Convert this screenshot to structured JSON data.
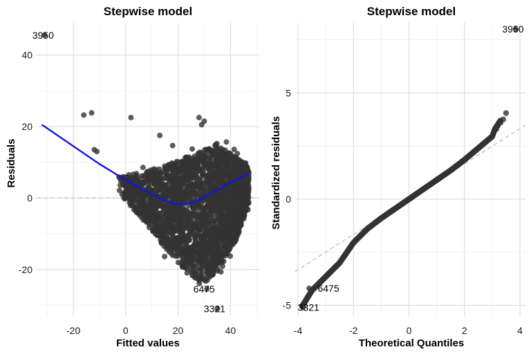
{
  "chart_data": [
    {
      "type": "scatter",
      "title": "Stepwise model",
      "xlabel": "Fitted values",
      "ylabel": "Residuals",
      "xlim": [
        -34,
        51
      ],
      "ylim": [
        -33,
        49
      ],
      "xticks": [
        -20,
        0,
        20,
        40
      ],
      "yticks": [
        -20,
        0,
        20,
        40
      ],
      "xticklabels": [
        "-20",
        "0",
        "20",
        "40"
      ],
      "yticklabels": [
        "-20",
        "0",
        "20",
        "40"
      ],
      "grid": true,
      "reference_line": {
        "y": 0,
        "style": "dashed",
        "color": "#bbbbbb"
      },
      "point_color": "#333333",
      "smooth_color": "#1414e6",
      "smooth_curve": {
        "x": [
          -32,
          -20,
          -10,
          0,
          5,
          10,
          15,
          20,
          25,
          30,
          35,
          40,
          47
        ],
        "y": [
          20.5,
          14.5,
          9.5,
          5,
          3,
          1,
          -0.8,
          -1.8,
          -1.5,
          0.2,
          2.3,
          4.3,
          6.8
        ]
      },
      "outlier_points": [
        {
          "x": -31,
          "y": 45.5,
          "label": "3950"
        },
        {
          "x": 31,
          "y": -25.5,
          "label": "6475"
        },
        {
          "x": 35,
          "y": -31,
          "label": "3321"
        },
        {
          "x": -16,
          "y": 23.2
        },
        {
          "x": -13,
          "y": 23.8
        },
        {
          "x": 2,
          "y": 22.5
        },
        {
          "x": -11,
          "y": 13
        },
        {
          "x": -12,
          "y": 13.5
        },
        {
          "x": 28,
          "y": 22.5
        },
        {
          "x": 29,
          "y": 20.5
        },
        {
          "x": 30,
          "y": 21.5
        },
        {
          "x": 13,
          "y": 17.5
        }
      ],
      "point_cloud": {
        "n": 2600,
        "x_range": [
          -3,
          47
        ],
        "upper_envelope": {
          "x": [
            -3,
            5,
            15,
            25,
            35,
            45,
            47
          ],
          "y": [
            6,
            7,
            9,
            12,
            15,
            10,
            8
          ]
        },
        "lower_envelope": {
          "x": [
            -3,
            5,
            15,
            25,
            30,
            35,
            42,
            47
          ],
          "y": [
            2,
            -5,
            -14,
            -22,
            -24,
            -20,
            -12,
            -2
          ]
        }
      }
    },
    {
      "type": "scatter",
      "title": "Stepwise model",
      "xlabel": "Theoretical Quantiles",
      "ylabel": "Standardized residuals",
      "xlim": [
        -4.1,
        4.2
      ],
      "ylim": [
        -5.5,
        8.3
      ],
      "xticks": [
        -4,
        -2,
        0,
        2,
        4
      ],
      "yticks": [
        -5,
        0,
        5
      ],
      "xticklabels": [
        "-4",
        "-2",
        "0",
        "2",
        "4"
      ],
      "yticklabels": [
        "-5",
        "0",
        "5"
      ],
      "grid": true,
      "reference_line": {
        "slope": 0.83,
        "intercept": 0.0,
        "style": "dashed",
        "color": "#bbbbbb"
      },
      "point_color": "#333333",
      "qq_curve": {
        "x": [
          -3.85,
          -3.5,
          -3.0,
          -2.5,
          -2.0,
          -1.5,
          -1.0,
          -0.5,
          0,
          0.5,
          1.0,
          1.5,
          2.0,
          2.5,
          3.0,
          3.1,
          3.3,
          3.5
        ],
        "y": [
          -5.05,
          -4.3,
          -3.65,
          -3.0,
          -2.05,
          -1.4,
          -0.9,
          -0.45,
          0.0,
          0.45,
          0.9,
          1.35,
          1.85,
          2.4,
          2.95,
          3.3,
          3.7,
          4.05
        ]
      },
      "outlier_points": [
        {
          "x": 3.85,
          "y": 8.0,
          "label": "3950"
        },
        {
          "x": -3.6,
          "y": -4.2,
          "label": "6475"
        },
        {
          "x": -3.82,
          "y": -5.1,
          "label": "3321"
        }
      ]
    }
  ]
}
